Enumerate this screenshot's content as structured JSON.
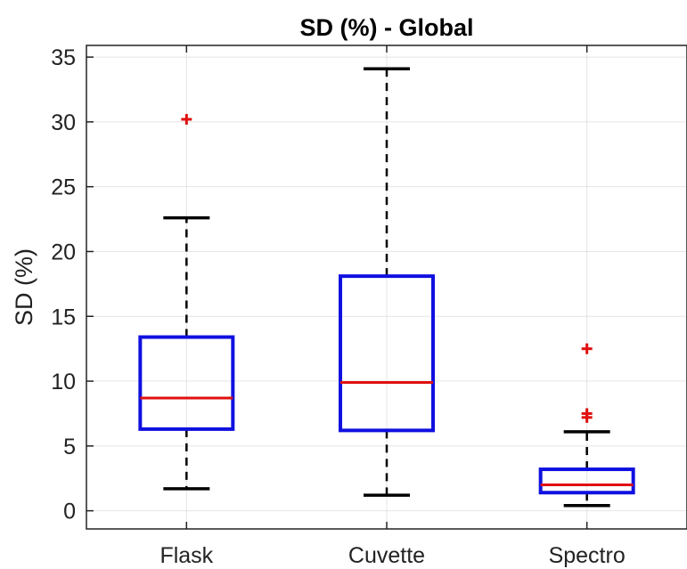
{
  "chart_data": {
    "type": "box",
    "title": "SD (%) - Global",
    "ylabel": "SD (%)",
    "xlabel": "",
    "ylim": [
      -1.4,
      35.9
    ],
    "yticks": [
      0,
      5,
      10,
      15,
      20,
      25,
      30,
      35
    ],
    "ytick_labels": [
      "0",
      "5",
      "10",
      "15",
      "20",
      "25",
      "30",
      "35"
    ],
    "grid": true,
    "categories": [
      "Flask",
      "Cuvette",
      "Spectro"
    ],
    "boxes": [
      {
        "category": "Flask",
        "whisker_low": 1.7,
        "q1": 6.3,
        "median": 8.7,
        "q3": 13.4,
        "whisker_high": 22.6,
        "outliers": [
          30.2
        ]
      },
      {
        "category": "Cuvette",
        "whisker_low": 1.2,
        "q1": 6.2,
        "median": 9.9,
        "q3": 18.1,
        "whisker_high": 34.1,
        "outliers": []
      },
      {
        "category": "Spectro",
        "whisker_low": 0.4,
        "q1": 1.4,
        "median": 2.0,
        "q3": 3.2,
        "whisker_high": 6.1,
        "outliers": [
          7.2,
          7.5,
          12.5
        ]
      }
    ],
    "colors": {
      "box": "#1010e0",
      "median": "#e01010",
      "whisker": "#000000",
      "outlier": "#e01010",
      "grid": "#e4e4e4",
      "axis": "#222222"
    }
  }
}
